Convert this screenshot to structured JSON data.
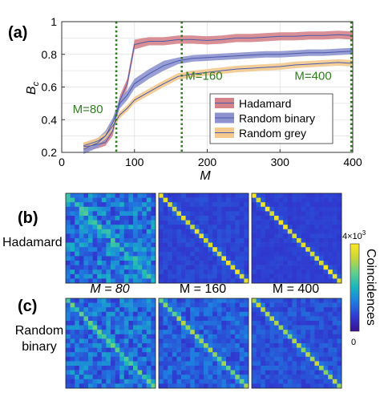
{
  "panels": {
    "a": "(a)",
    "b": "(b)",
    "c": "(c)"
  },
  "chart_data": {
    "type": "line",
    "xlabel": "M",
    "ylabel_main": "B",
    "ylabel_sub": "c",
    "xlim": [
      0,
      400
    ],
    "ylim": [
      0.2,
      1.0
    ],
    "xticks": [
      0,
      100,
      200,
      300,
      400
    ],
    "yticks": [
      0.2,
      0.4,
      0.6,
      0.8,
      1.0
    ],
    "xtick_labels": [
      "0",
      "100",
      "200",
      "300",
      "400"
    ],
    "ytick_labels": [
      "0.2",
      "0.4",
      "0.6",
      "0.8",
      "1"
    ],
    "grid": true,
    "legend_position": "right",
    "vlines": [
      {
        "x": 75,
        "label": "M=80",
        "label_x": 15,
        "label_y": 0.44
      },
      {
        "x": 165,
        "label": "M=160",
        "label_x": 170,
        "label_y": 0.645
      },
      {
        "x": 398,
        "label": "M=400",
        "label_x": 320,
        "label_y": 0.645
      }
    ],
    "series": [
      {
        "name": "Hadamard",
        "color": "#4b5bab",
        "band_color": "#d4838a",
        "x": [
          30,
          40,
          50,
          60,
          70,
          80,
          90,
          100,
          120,
          140,
          160,
          180,
          200,
          220,
          240,
          260,
          280,
          300,
          320,
          340,
          360,
          380,
          400
        ],
        "y": [
          0.235,
          0.24,
          0.25,
          0.26,
          0.33,
          0.52,
          0.62,
          0.86,
          0.88,
          0.88,
          0.89,
          0.89,
          0.885,
          0.89,
          0.9,
          0.9,
          0.905,
          0.91,
          0.91,
          0.915,
          0.915,
          0.92,
          0.915
        ],
        "lo": [
          0.21,
          0.215,
          0.225,
          0.24,
          0.3,
          0.49,
          0.59,
          0.83,
          0.855,
          0.855,
          0.865,
          0.865,
          0.86,
          0.865,
          0.875,
          0.875,
          0.88,
          0.885,
          0.885,
          0.89,
          0.89,
          0.895,
          0.89
        ],
        "hi": [
          0.26,
          0.265,
          0.275,
          0.285,
          0.36,
          0.55,
          0.65,
          0.89,
          0.905,
          0.905,
          0.915,
          0.915,
          0.91,
          0.915,
          0.925,
          0.925,
          0.93,
          0.935,
          0.935,
          0.94,
          0.94,
          0.945,
          0.94
        ]
      },
      {
        "name": "Random binary",
        "color": "#4b5bab",
        "band_color": "#8e93cf",
        "x": [
          30,
          40,
          50,
          60,
          70,
          80,
          90,
          100,
          120,
          140,
          160,
          180,
          200,
          220,
          240,
          260,
          280,
          300,
          320,
          340,
          360,
          380,
          400
        ],
        "y": [
          0.22,
          0.24,
          0.26,
          0.3,
          0.38,
          0.5,
          0.55,
          0.62,
          0.68,
          0.73,
          0.76,
          0.775,
          0.78,
          0.785,
          0.79,
          0.795,
          0.8,
          0.8,
          0.805,
          0.81,
          0.81,
          0.815,
          0.82
        ],
        "lo": [
          0.19,
          0.21,
          0.23,
          0.27,
          0.35,
          0.47,
          0.52,
          0.59,
          0.65,
          0.7,
          0.74,
          0.755,
          0.76,
          0.765,
          0.77,
          0.775,
          0.78,
          0.78,
          0.785,
          0.79,
          0.79,
          0.795,
          0.8
        ],
        "hi": [
          0.25,
          0.27,
          0.29,
          0.33,
          0.41,
          0.53,
          0.58,
          0.65,
          0.71,
          0.76,
          0.78,
          0.795,
          0.8,
          0.805,
          0.81,
          0.815,
          0.82,
          0.82,
          0.825,
          0.83,
          0.83,
          0.835,
          0.84
        ]
      },
      {
        "name": "Random grey",
        "color": "#4b5bab",
        "band_color": "#f3c98d",
        "x": [
          30,
          40,
          50,
          60,
          70,
          80,
          90,
          100,
          120,
          140,
          160,
          180,
          200,
          220,
          240,
          260,
          280,
          300,
          320,
          340,
          360,
          380,
          400
        ],
        "y": [
          0.24,
          0.255,
          0.27,
          0.3,
          0.36,
          0.43,
          0.47,
          0.52,
          0.57,
          0.62,
          0.665,
          0.68,
          0.69,
          0.7,
          0.71,
          0.715,
          0.72,
          0.725,
          0.735,
          0.74,
          0.745,
          0.75,
          0.745
        ],
        "lo": [
          0.22,
          0.235,
          0.25,
          0.28,
          0.34,
          0.41,
          0.45,
          0.5,
          0.55,
          0.6,
          0.645,
          0.66,
          0.67,
          0.68,
          0.69,
          0.695,
          0.7,
          0.705,
          0.715,
          0.72,
          0.725,
          0.73,
          0.725
        ],
        "hi": [
          0.26,
          0.275,
          0.29,
          0.32,
          0.38,
          0.45,
          0.49,
          0.54,
          0.59,
          0.64,
          0.685,
          0.7,
          0.71,
          0.72,
          0.73,
          0.735,
          0.74,
          0.745,
          0.755,
          0.76,
          0.765,
          0.77,
          0.765
        ]
      }
    ]
  },
  "matrices": {
    "row_labels": [
      "Hadamard",
      "Random",
      "binary"
    ],
    "column_labels": [
      "M = 80",
      "M = 160",
      "M = 400"
    ],
    "colorbar": {
      "label": "Coincidences",
      "max_label": "4×10",
      "max_exp": "3",
      "min_label": "0",
      "colors": [
        "#3a0f8f",
        "#2f3bd1",
        "#1f7de0",
        "#19b5bf",
        "#5fd08b",
        "#c9d63a",
        "#fde725"
      ]
    }
  }
}
